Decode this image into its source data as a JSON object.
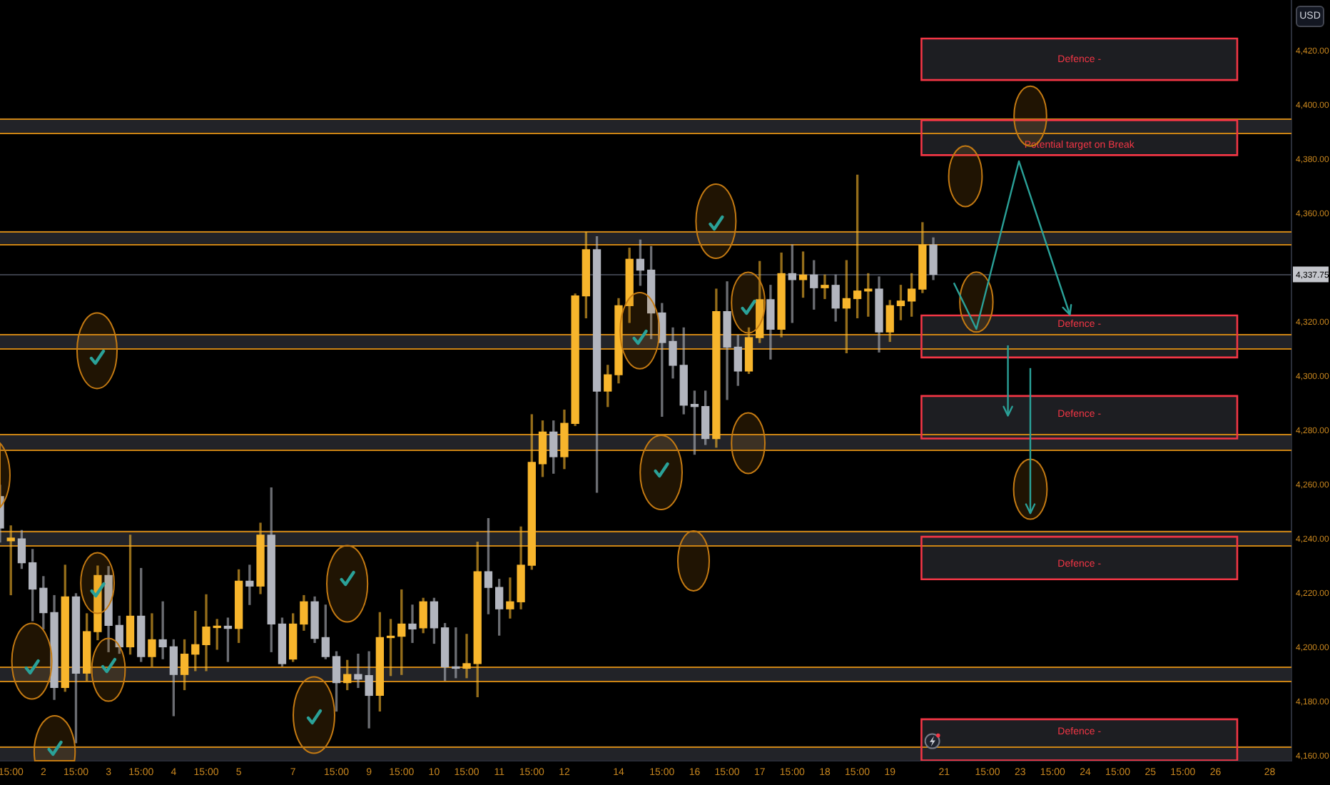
{
  "chart_data": {
    "type": "candlestick",
    "ylabel": "USD",
    "categories": [
      null,
      "15:00",
      null,
      null,
      "2",
      null,
      null,
      "15:00",
      null,
      null,
      "3",
      null,
      null,
      "15:00",
      null,
      null,
      "4",
      null,
      null,
      "15:00",
      null,
      null,
      "5",
      null,
      null,
      null,
      null,
      "7",
      null,
      null,
      null,
      "15:00",
      null,
      null,
      "9",
      null,
      null,
      "15:00",
      null,
      null,
      "10",
      null,
      null,
      "15:00",
      null,
      null,
      "11",
      null,
      null,
      "15:00",
      null,
      null,
      "12",
      null,
      null,
      null,
      null,
      "14",
      null,
      null,
      null,
      "15:00",
      null,
      null,
      "16",
      null,
      null,
      "15:00",
      null,
      null,
      "17",
      null,
      null,
      "15:00",
      null,
      null,
      "18",
      null,
      null,
      "15:00",
      null,
      null,
      "19",
      null,
      null,
      null,
      null,
      "21",
      null,
      null,
      null,
      "15:00",
      null,
      null,
      "23",
      null,
      null,
      "15:00",
      null,
      null,
      "24",
      null,
      null,
      "15:00",
      null,
      null,
      "25",
      null,
      null,
      "15:00",
      null,
      null,
      "26",
      null,
      null,
      null,
      null,
      "28",
      null,
      null
    ],
    "ohlc": [
      [
        4255.8,
        4260,
        4239,
        4244.2
      ],
      [
        4239.5,
        4245,
        4219.6,
        4240.5
      ],
      [
        4240.2,
        4243.3,
        4229.3,
        4231.4
      ],
      [
        4231.4,
        4236.3,
        4210,
        4221.7
      ],
      [
        4222,
        4226.3,
        4207,
        4213
      ],
      [
        4213,
        4219.3,
        4181,
        4185.4
      ],
      [
        4185.4,
        4230.5,
        4184,
        4218.8
      ],
      [
        4218.8,
        4220,
        4165,
        4190.7
      ],
      [
        4190.7,
        4212.6,
        4188,
        4206
      ],
      [
        4206,
        4230.2,
        4203,
        4226.7
      ],
      [
        4226.7,
        4230,
        4198.6,
        4208.3
      ],
      [
        4208.3,
        4211.7,
        4198,
        4200.4
      ],
      [
        4200.4,
        4241.6,
        4197.7,
        4211.7
      ],
      [
        4211.7,
        4229.3,
        4195,
        4196.8
      ],
      [
        4196.8,
        4212.6,
        4193.3,
        4203
      ],
      [
        4203,
        4217,
        4196,
        4200.4
      ],
      [
        4200.4,
        4203,
        4175,
        4190.2
      ],
      [
        4190.2,
        4203,
        4184.6,
        4197.7
      ],
      [
        4197.7,
        4213.5,
        4191.6,
        4201.2
      ],
      [
        4201.2,
        4219.6,
        4191.6,
        4207.7
      ],
      [
        4207.5,
        4210.5,
        4199.5,
        4208
      ],
      [
        4208,
        4211,
        4195,
        4207.2
      ],
      [
        4207.2,
        4228.8,
        4202,
        4224.6
      ],
      [
        4224.6,
        4230.5,
        4216,
        4222.8
      ],
      [
        4222.8,
        4246,
        4220,
        4241.6
      ],
      [
        4241.6,
        4259,
        4198.6,
        4208.8
      ],
      [
        4208.8,
        4211,
        4193.3,
        4194.2
      ],
      [
        4195.9,
        4212.6,
        4195,
        4208.8
      ],
      [
        4208.8,
        4219.3,
        4206.5,
        4217
      ],
      [
        4217,
        4218.8,
        4202,
        4203.5
      ],
      [
        4203.8,
        4215.8,
        4196,
        4196.8
      ],
      [
        4196.8,
        4198.6,
        4176.7,
        4187.2
      ],
      [
        4187.2,
        4195.4,
        4184.6,
        4190.2
      ],
      [
        4190.2,
        4197.7,
        4185.4,
        4188.5
      ],
      [
        4189.8,
        4198.6,
        4170.5,
        4182.5
      ],
      [
        4182.5,
        4213,
        4176.7,
        4203.8
      ],
      [
        4203.8,
        4210.5,
        4189.8,
        4204.3
      ],
      [
        4204.3,
        4221.4,
        4190.2,
        4208.8
      ],
      [
        4208.8,
        4215.8,
        4202,
        4207
      ],
      [
        4207.4,
        4218.3,
        4205.6,
        4217
      ],
      [
        4217,
        4218.3,
        4201.7,
        4207.4
      ],
      [
        4207.4,
        4209,
        4188,
        4193
      ],
      [
        4193,
        4207.4,
        4189,
        4192.5
      ],
      [
        4192.5,
        4205,
        4189,
        4194.2
      ],
      [
        4194.2,
        4239,
        4182,
        4228.1
      ],
      [
        4228.1,
        4247.7,
        4212.6,
        4222.3
      ],
      [
        4222.3,
        4225.3,
        4204.7,
        4214.4
      ],
      [
        4214.4,
        4225.8,
        4211,
        4217
      ],
      [
        4217,
        4244.6,
        4214.4,
        4230.5
      ],
      [
        4230.5,
        4286,
        4229,
        4268.4
      ],
      [
        4267.9,
        4283.7,
        4263.2,
        4279.6
      ],
      [
        4279.6,
        4283.7,
        4264.4,
        4270.5
      ],
      [
        4270.5,
        4287.7,
        4266.1,
        4282.8
      ],
      [
        4282.8,
        4330.5,
        4282,
        4329.8
      ],
      [
        4329.8,
        4353.3,
        4321.7,
        4346.8
      ],
      [
        4346.8,
        4351.6,
        4257.4,
        4294.7
      ],
      [
        4294.7,
        4304.2,
        4289,
        4300.7
      ],
      [
        4300.7,
        4328.8,
        4297.7,
        4326.2
      ],
      [
        4326.2,
        4347.4,
        4320,
        4343.3
      ],
      [
        4343.3,
        4350.4,
        4333.7,
        4339.3
      ],
      [
        4339.3,
        4348,
        4314,
        4323.5
      ],
      [
        4323.5,
        4327,
        4285.4,
        4312.6
      ],
      [
        4313,
        4318,
        4299.5,
        4304.2
      ],
      [
        4304.2,
        4318,
        4286.3,
        4289.5
      ],
      [
        4289.8,
        4294.7,
        4271.4,
        4289
      ],
      [
        4289,
        4294.7,
        4275,
        4277.2
      ],
      [
        4277.2,
        4332.3,
        4274,
        4324
      ],
      [
        4324,
        4335,
        4291.6,
        4310.9
      ],
      [
        4310.9,
        4315.3,
        4296.8,
        4302.1
      ],
      [
        4302.1,
        4318,
        4301.2,
        4314.4
      ],
      [
        4314.4,
        4342.5,
        4312.6,
        4328.4
      ],
      [
        4328.4,
        4333.7,
        4306.5,
        4317.5
      ],
      [
        4317.5,
        4345.6,
        4314.7,
        4338
      ],
      [
        4338,
        4348.6,
        4320,
        4335.8
      ],
      [
        4335.8,
        4346,
        4329.3,
        4337.5
      ],
      [
        4337.5,
        4342.8,
        4324.9,
        4332.8
      ],
      [
        4332.8,
        4337.5,
        4328.8,
        4333.7
      ],
      [
        4333.7,
        4337.5,
        4320.5,
        4325.3
      ],
      [
        4325.3,
        4342.8,
        4308.8,
        4328.8
      ],
      [
        4328.8,
        4374.3,
        4321.7,
        4331.6
      ],
      [
        4331.6,
        4338,
        4322.3,
        4332.3
      ],
      [
        4332.3,
        4336.8,
        4309.1,
        4316.5
      ],
      [
        4316.5,
        4328.1,
        4313,
        4326.2
      ],
      [
        4326.2,
        4333.7,
        4321,
        4327.9
      ],
      [
        4327.9,
        4338,
        4322.3,
        4332.3
      ],
      [
        4332.3,
        4356.8,
        4331,
        4348.6
      ],
      [
        4348.6,
        4351.2,
        4335.8,
        4337.75
      ],
      null,
      null,
      null,
      null,
      null,
      null,
      null,
      null,
      null,
      null,
      null,
      null,
      null,
      null,
      null,
      null,
      null,
      null,
      null,
      null,
      null,
      null,
      null,
      null,
      null,
      null,
      null,
      null,
      null,
      null,
      null,
      null,
      null
    ],
    "colors": [
      "#b2b5be",
      "#f7b52c",
      "#b2b5be",
      "#b2b5be",
      "#b2b5be",
      "#b2b5be",
      "#f7b52c",
      "#b2b5be",
      "#f7b52c",
      "#f7b52c",
      "#b2b5be",
      "#b2b5be",
      "#f7b52c",
      "#b2b5be",
      "#f7b52c",
      "#b2b5be",
      "#b2b5be",
      "#f7b52c",
      "#f7b52c",
      "#f7b52c",
      "#f7b52c",
      "#b2b5be",
      "#f7b52c",
      "#b2b5be",
      "#f7b52c",
      "#b2b5be",
      "#b2b5be",
      "#f7b52c",
      "#f7b52c",
      "#b2b5be",
      "#b2b5be",
      "#b2b5be",
      "#f7b52c",
      "#b2b5be",
      "#b2b5be",
      "#f7b52c",
      "#f7b52c",
      "#f7b52c",
      "#b2b5be",
      "#f7b52c",
      "#b2b5be",
      "#b2b5be",
      "#b2b5be",
      "#f7b52c",
      "#f7b52c",
      "#b2b5be",
      "#b2b5be",
      "#f7b52c",
      "#f7b52c",
      "#f7b52c",
      "#f7b52c",
      "#b2b5be",
      "#f7b52c",
      "#f7b52c",
      "#f7b52c",
      "#b2b5be",
      "#f7b52c",
      "#f7b52c",
      "#f7b52c",
      "#b2b5be",
      "#b2b5be",
      "#b2b5be",
      "#b2b5be",
      "#b2b5be",
      "#b2b5be",
      "#b2b5be",
      "#f7b52c",
      "#b2b5be",
      "#b2b5be",
      "#f7b52c",
      "#f7b52c",
      "#b2b5be",
      "#f7b52c",
      "#b2b5be",
      "#f7b52c",
      "#b2b5be",
      "#f7b52c",
      "#b2b5be",
      "#f7b52c",
      "#f7b52c",
      "#f7b52c",
      "#b2b5be",
      "#f7b52c",
      "#f7b52c",
      "#f7b52c",
      "#f7b52c",
      "#b2b5be",
      null,
      null,
      null,
      null,
      null,
      null,
      null,
      null,
      null,
      null,
      null,
      null,
      null,
      null,
      null,
      null,
      null,
      null,
      null,
      null,
      null,
      null,
      null,
      null,
      null,
      null,
      null,
      null,
      null,
      null,
      null,
      null,
      null
    ],
    "ylim": [
      4158.4,
      4438.9
    ],
    "yticks": [
      {
        "value": 4160,
        "label": "4,160.00"
      },
      {
        "value": 4180,
        "label": "4,180.00"
      },
      {
        "value": 4200,
        "label": "4,200.00"
      },
      {
        "value": 4220,
        "label": "4,220.00"
      },
      {
        "value": 4240,
        "label": "4,240.00"
      },
      {
        "value": 4260,
        "label": "4,260.00"
      },
      {
        "value": 4280,
        "label": "4,280.00"
      },
      {
        "value": 4300,
        "label": "4,300.00"
      },
      {
        "value": 4320,
        "label": "4,320.00"
      },
      {
        "value": 4360,
        "label": "4,360.00"
      },
      {
        "value": 4380,
        "label": "4,380.00"
      },
      {
        "value": 4400,
        "label": "4,400.00"
      },
      {
        "value": 4420,
        "label": "4,420.00"
      }
    ],
    "bands": [
      {
        "axis": "y",
        "from": 4409.4,
        "to": 4424.7,
        "label": "Defence -",
        "color": "#1d1e22"
      },
      {
        "axis": "y",
        "from": 4381.7,
        "to": 4394.6,
        "label": "Potential target on Break",
        "color": "#1d1e22"
      },
      {
        "axis": "y",
        "from": 4307.1,
        "to": 4322.6,
        "label": "Defence -",
        "color": "#1d1e22"
      },
      {
        "axis": "y",
        "from": 4277.2,
        "to": 4292.9,
        "label": "Defence -",
        "color": "#1d1e22"
      },
      {
        "axis": "y",
        "from": 4225.3,
        "to": 4241,
        "label": "Defence -",
        "color": "#1d1e22"
      },
      {
        "axis": "y",
        "from": 4158.5,
        "to": 4173.7,
        "label": "Defence -",
        "color": "#1d1e22"
      },
      {
        "axis": "y",
        "from": 4390,
        "to": 4395.3,
        "color": "#222328"
      },
      {
        "axis": "y",
        "from": 4349,
        "to": 4353.8,
        "color": "#222328"
      },
      {
        "axis": "y",
        "from": 4310.5,
        "to": 4315.6,
        "color": "#222328"
      },
      {
        "axis": "y",
        "from": 4273.2,
        "to": 4278.8,
        "color": "#222328"
      },
      {
        "axis": "y",
        "from": 4237.7,
        "to": 4243.3,
        "color": "#222328"
      },
      {
        "axis": "y",
        "from": 4187.7,
        "to": 4193,
        "color": "#222328"
      },
      {
        "axis": "y",
        "from": 4158.5,
        "to": 4163.8,
        "color": "#222328"
      }
    ],
    "ref_lines": [
      {
        "axis": "y",
        "value": 4337.75,
        "label": "4,337.75",
        "color": "#3a3e48"
      },
      {
        "axis": "y",
        "value": 4395.3,
        "color": "#cc8414"
      },
      {
        "axis": "y",
        "value": 4390,
        "color": "#cc8414"
      },
      {
        "axis": "y",
        "value": 4353.8,
        "color": "#cc8414"
      },
      {
        "axis": "y",
        "value": 4349,
        "color": "#cc8414"
      },
      {
        "axis": "y",
        "value": 4315.6,
        "color": "#cc8414"
      },
      {
        "axis": "y",
        "value": 4310.5,
        "color": "#cc8414"
      },
      {
        "axis": "y",
        "value": 4278.8,
        "color": "#cc8414"
      },
      {
        "axis": "y",
        "value": 4273.2,
        "color": "#cc8414"
      },
      {
        "axis": "y",
        "value": 4243.3,
        "color": "#cc8414"
      },
      {
        "axis": "y",
        "value": 4237.7,
        "color": "#cc8414"
      },
      {
        "axis": "y",
        "value": 4193,
        "color": "#cc8414"
      },
      {
        "axis": "y",
        "value": 4187.7,
        "color": "#cc8414"
      },
      {
        "axis": "y",
        "value": 4163.8,
        "color": "#cc8414"
      }
    ]
  }
}
